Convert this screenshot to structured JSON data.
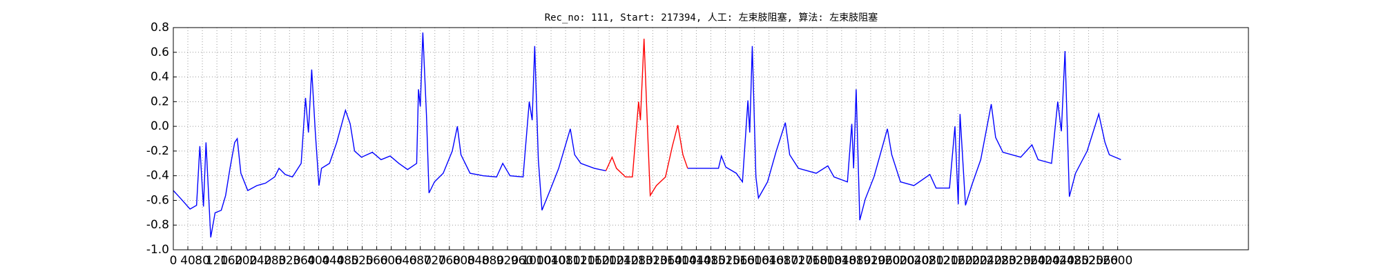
{
  "chart_data": {
    "type": "line",
    "title": "Rec_no: 111, Start: 217394, 人工: 左束肢阻塞, 算法: 左束肢阻塞",
    "x": [
      0,
      22,
      46,
      64,
      73,
      83,
      90,
      103,
      115,
      132,
      144,
      156,
      169,
      176,
      186,
      205,
      230,
      254,
      279,
      291,
      308,
      328,
      352,
      364,
      372,
      381,
      391,
      401,
      408,
      430,
      450,
      474,
      487,
      499,
      518,
      548,
      572,
      597,
      621,
      645,
      670,
      675,
      680,
      687,
      697,
      704,
      719,
      743,
      768,
      782,
      792,
      817,
      853,
      890,
      907,
      927,
      963,
      980,
      988,
      995,
      1005,
      1015,
      1037,
      1061,
      1093,
      1105,
      1122,
      1159,
      1191,
      1208,
      1220,
      1245,
      1264,
      1281,
      1286,
      1296,
      1306,
      1313,
      1330,
      1355,
      1374,
      1389,
      1403,
      1416,
      1452,
      1501,
      1509,
      1521,
      1550,
      1567,
      1582,
      1587,
      1594,
      1604,
      1611,
      1636,
      1660,
      1685,
      1697,
      1721,
      1770,
      1802,
      1819,
      1856,
      1868,
      1873,
      1880,
      1890,
      1905,
      1929,
      1966,
      1978,
      2002,
      2039,
      2083,
      2100,
      2137,
      2152,
      2161,
      2166,
      2181,
      2198,
      2223,
      2252,
      2264,
      2284,
      2333,
      2364,
      2381,
      2418,
      2435,
      2445,
      2455,
      2467,
      2484,
      2516,
      2548,
      2565,
      2577,
      2609
    ],
    "series": [
      {
        "color": "#0000ff",
        "values": [
          -0.52,
          -0.59,
          -0.67,
          -0.64,
          -0.16,
          -0.65,
          -0.13,
          -0.9,
          -0.7,
          -0.68,
          -0.56,
          -0.34,
          -0.13,
          -0.1,
          -0.38,
          -0.52,
          -0.48,
          -0.46,
          -0.41,
          -0.34,
          -0.39,
          -0.41,
          -0.3,
          0.23,
          -0.05,
          0.46,
          -0.05,
          -0.48,
          -0.34,
          -0.3,
          -0.13,
          0.13,
          0.02,
          -0.2,
          -0.25,
          -0.21,
          -0.27,
          -0.24,
          -0.3,
          -0.35,
          -0.3,
          0.3,
          0.16,
          0.76,
          0.09,
          -0.54,
          -0.45,
          -0.38,
          -0.2,
          0.0,
          -0.23,
          -0.38,
          -0.4,
          -0.41,
          -0.3,
          -0.4,
          -0.41,
          0.2,
          0.05,
          0.65,
          -0.27,
          -0.68,
          -0.52,
          -0.34,
          -0.02,
          -0.23,
          -0.3,
          -0.34,
          -0.36,
          null,
          null,
          null,
          null,
          null,
          null,
          null,
          null,
          null,
          null,
          null,
          null,
          null,
          null,
          -0.34,
          -0.34,
          -0.34,
          -0.24,
          -0.33,
          -0.38,
          -0.45,
          0.21,
          -0.05,
          0.65,
          -0.41,
          -0.58,
          -0.45,
          -0.2,
          0.03,
          -0.23,
          -0.34,
          -0.38,
          -0.32,
          -0.41,
          -0.45,
          0.02,
          -0.34,
          0.3,
          -0.76,
          -0.59,
          -0.41,
          -0.02,
          -0.23,
          -0.45,
          -0.48,
          -0.39,
          -0.5,
          -0.5,
          0.0,
          -0.63,
          0.1,
          -0.64,
          -0.48,
          -0.27,
          0.18,
          -0.09,
          -0.21,
          -0.25,
          -0.15,
          -0.27,
          -0.3,
          0.2,
          -0.04,
          0.61,
          -0.57,
          -0.38,
          -0.2,
          0.1,
          -0.13,
          -0.23,
          -0.27
        ]
      },
      {
        "color": "#ff0000",
        "values": [
          null,
          null,
          null,
          null,
          null,
          null,
          null,
          null,
          null,
          null,
          null,
          null,
          null,
          null,
          null,
          null,
          null,
          null,
          null,
          null,
          null,
          null,
          null,
          null,
          null,
          null,
          null,
          null,
          null,
          null,
          null,
          null,
          null,
          null,
          null,
          null,
          null,
          null,
          null,
          null,
          null,
          null,
          null,
          null,
          null,
          null,
          null,
          null,
          null,
          null,
          null,
          null,
          null,
          null,
          null,
          null,
          null,
          null,
          null,
          null,
          null,
          null,
          null,
          null,
          null,
          null,
          null,
          null,
          -0.36,
          -0.25,
          -0.34,
          -0.41,
          -0.41,
          0.2,
          0.05,
          0.71,
          -0.05,
          -0.56,
          -0.48,
          -0.41,
          -0.16,
          0.01,
          -0.23,
          -0.34,
          null,
          null,
          null,
          null,
          null,
          null,
          null,
          null,
          null,
          null,
          null,
          null,
          null,
          null,
          null,
          null,
          null,
          null,
          null,
          null,
          null,
          null,
          null,
          null,
          null,
          null,
          null,
          null,
          null,
          null,
          null,
          null,
          null,
          null,
          null,
          null,
          null,
          null,
          null,
          null,
          null,
          null,
          null,
          null,
          null,
          null,
          null,
          null,
          null,
          null,
          null,
          null,
          null,
          null,
          null,
          null
        ]
      }
    ],
    "xlim": [
      0,
      2960
    ],
    "xticks": [
      0,
      40,
      80,
      120,
      160,
      200,
      240,
      280,
      320,
      360,
      400,
      440,
      480,
      520,
      560,
      600,
      640,
      680,
      720,
      760,
      800,
      840,
      880,
      920,
      960,
      1000,
      1040,
      1080,
      1120,
      1160,
      1200,
      1240,
      1280,
      1320,
      1360,
      1400,
      1440,
      1480,
      1520,
      1560,
      1600,
      1640,
      1680,
      1720,
      1760,
      1800,
      1840,
      1880,
      1920,
      1960,
      2000,
      2040,
      2080,
      2120,
      2160,
      2200,
      2240,
      2280,
      2320,
      2360,
      2400,
      2440,
      2480,
      2520,
      2560,
      2600
    ],
    "ylim": [
      -1.0,
      0.8
    ],
    "yticks": [
      {
        "value": -1.0,
        "label": "-1.0"
      },
      -0.8,
      -0.6,
      -0.4,
      -0.2,
      {
        "value": 0.0,
        "label": "0.0"
      },
      0.2,
      0.4,
      0.6,
      0.8
    ],
    "grid": true
  }
}
